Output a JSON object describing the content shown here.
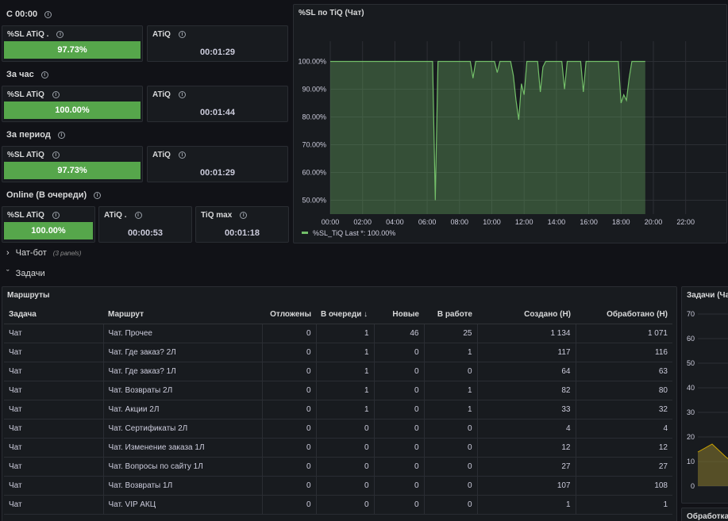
{
  "sections": {
    "since_midnight": "С 00:00",
    "last_hour": "За час",
    "period": "За период",
    "online": "Online (В очереди)"
  },
  "stats": {
    "s1_sl_title": "%SL ATiQ .",
    "s1_sl_value": "97.73%",
    "s1_atiq_title": "ATiQ",
    "s1_atiq_value": "00:01:29",
    "s2_sl_title": "%SL ATiQ",
    "s2_sl_value": "100.00%",
    "s2_atiq_title": "ATiQ",
    "s2_atiq_value": "00:01:44",
    "s3_sl_title": "%SL ATiQ",
    "s3_sl_value": "97.73%",
    "s3_atiq_title": "ATiQ",
    "s3_atiq_value": "00:01:29",
    "s4_sl_title": "%SL ATiQ",
    "s4_sl_value": "100.00%",
    "s4_atiq_title": "ATiQ .",
    "s4_atiq_value": "00:00:53",
    "s4_tiq_title": "TiQ max",
    "s4_tiq_value": "00:01:18"
  },
  "chart_panel_title": "%SL по TiQ (Чат)",
  "chart_data": {
    "type": "area",
    "x": [
      "00:00",
      "06:00",
      "06:10",
      "06:20",
      "06:30",
      "06:40",
      "06:50",
      "07:00",
      "07:10",
      "07:20",
      "07:30",
      "07:40",
      "07:50",
      "08:00",
      "08:10",
      "08:20",
      "08:30",
      "08:40",
      "08:50",
      "09:00",
      "09:10",
      "09:20",
      "09:30",
      "09:40",
      "09:50",
      "10:00",
      "10:10",
      "10:20",
      "10:30",
      "10:40",
      "10:50",
      "11:00",
      "11:10",
      "11:20",
      "11:30",
      "11:40",
      "11:50",
      "12:00",
      "12:10",
      "12:20",
      "12:30",
      "12:40",
      "12:50",
      "13:00",
      "13:10",
      "13:20",
      "13:30",
      "13:40",
      "13:50",
      "14:00",
      "14:10",
      "14:20",
      "14:30",
      "14:40",
      "14:50",
      "15:00",
      "15:10",
      "15:20",
      "15:30",
      "15:40",
      "15:50",
      "16:00",
      "16:10",
      "16:20",
      "16:30",
      "16:40",
      "16:50",
      "17:00",
      "17:10",
      "17:20",
      "17:30",
      "17:40",
      "17:50",
      "18:00",
      "18:10",
      "18:20",
      "18:30",
      "18:40",
      "18:50",
      "19:00",
      "19:20",
      "19:30"
    ],
    "series": [
      {
        "name": "%SL_TiQ",
        "values": [
          100,
          100,
          100,
          100,
          50,
          100,
          100,
          100,
          100,
          100,
          100,
          100,
          100,
          100,
          100,
          100,
          100,
          100,
          94,
          100,
          100,
          100,
          100,
          100,
          100,
          100,
          100,
          96,
          100,
          100,
          100,
          100,
          100,
          95,
          86,
          79,
          92,
          88,
          100,
          100,
          100,
          100,
          100,
          89,
          98,
          100,
          100,
          100,
          100,
          100,
          100,
          100,
          90,
          100,
          100,
          100,
          100,
          100,
          100,
          89,
          100,
          100,
          100,
          100,
          100,
          100,
          100,
          100,
          100,
          100,
          100,
          100,
          100,
          85,
          88,
          86,
          94,
          100,
          100,
          100,
          100,
          100
        ]
      }
    ],
    "ylim": [
      45,
      105
    ],
    "yticks": [
      "100.00%",
      "90.00%",
      "80.00%",
      "70.00%",
      "60.00%",
      "50.00%"
    ],
    "xticks": [
      "00:00",
      "02:00",
      "04:00",
      "06:00",
      "08:00",
      "10:00",
      "12:00",
      "14:00",
      "16:00",
      "18:00",
      "20:00",
      "22:00"
    ],
    "legend": "%SL_TiQ   Last *: 100.00%",
    "legend_placement": "bottom-left",
    "color": "#73bf69"
  },
  "rows": {
    "chatbot_label": "Чат-бот",
    "chatbot_sub": "(3 panels)",
    "tasks_label": "Задачи"
  },
  "routes": {
    "title": "Маршруты",
    "columns": [
      "Задача",
      "Маршрут",
      "Отложены",
      "В очереди ↓",
      "Новые",
      "В работе",
      "Создано (Н)",
      "Обработано (Н)"
    ],
    "rows": [
      [
        "Чат",
        "Чат. Прочее",
        "0",
        "1",
        "46",
        "25",
        "1 134",
        "1 071"
      ],
      [
        "Чат",
        "Чат. Где заказ? 2Л",
        "0",
        "1",
        "0",
        "1",
        "117",
        "116"
      ],
      [
        "Чат",
        "Чат. Где заказ? 1Л",
        "0",
        "1",
        "0",
        "0",
        "64",
        "63"
      ],
      [
        "Чат",
        "Чат. Возвраты 2Л",
        "0",
        "1",
        "0",
        "1",
        "82",
        "80"
      ],
      [
        "Чат",
        "Чат. Акции 2Л",
        "0",
        "1",
        "0",
        "1",
        "33",
        "32"
      ],
      [
        "Чат",
        "Чат. Сертификаты 2Л",
        "0",
        "0",
        "0",
        "0",
        "4",
        "4"
      ],
      [
        "Чат",
        "Чат. Изменение заказа 1Л",
        "0",
        "0",
        "0",
        "0",
        "12",
        "12"
      ],
      [
        "Чат",
        "Чат. Вопросы по сайту 1Л",
        "0",
        "0",
        "0",
        "0",
        "27",
        "27"
      ],
      [
        "Чат",
        "Чат. Возвраты 1Л",
        "0",
        "0",
        "0",
        "0",
        "107",
        "108"
      ],
      [
        "Чат",
        "Чат. VIP АКЦ",
        "0",
        "0",
        "0",
        "0",
        "1",
        "1"
      ]
    ]
  },
  "side_panel": {
    "title": "Задачи (Ча",
    "yticks": [
      "70",
      "60",
      "50",
      "40",
      "30",
      "20",
      "10",
      "0"
    ],
    "bottom_title": "Обработка"
  }
}
